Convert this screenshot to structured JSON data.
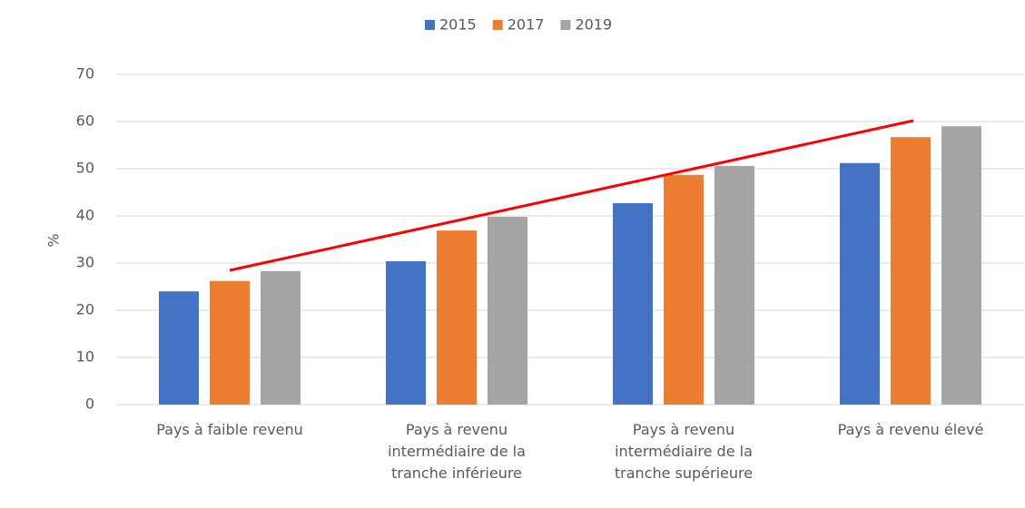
{
  "chart_data": {
    "type": "bar",
    "categories": [
      "Pays à faible revenu",
      "Pays à revenu intermédiaire de la tranche inférieure",
      "Pays à revenu intermédiaire de la tranche supérieure",
      "Pays à revenu élevé"
    ],
    "series": [
      {
        "name": "2015",
        "color": "#4472c4",
        "values": [
          24.0,
          30.4,
          42.7,
          51.2
        ]
      },
      {
        "name": "2017",
        "color": "#ed7d31",
        "values": [
          26.2,
          36.9,
          48.7,
          56.7
        ]
      },
      {
        "name": "2019",
        "color": "#a5a5a5",
        "values": [
          28.3,
          39.8,
          50.6,
          59.0
        ]
      }
    ],
    "ylabel": "%",
    "ylim": [
      0,
      70
    ],
    "yticks": [
      0,
      10,
      20,
      30,
      40,
      50,
      60,
      70
    ],
    "grid": true,
    "legend": "top"
  }
}
